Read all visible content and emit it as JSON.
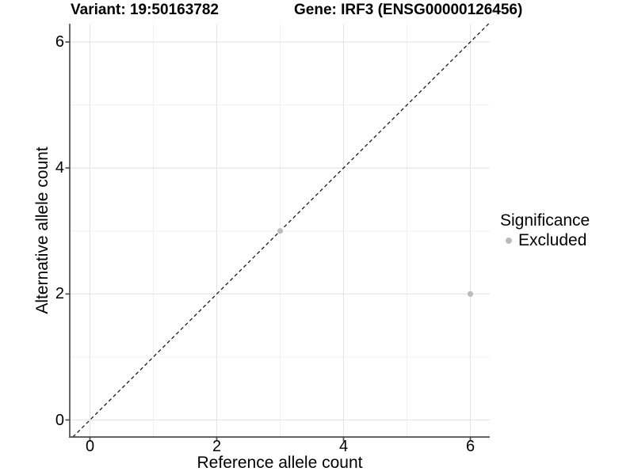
{
  "chart_data": {
    "type": "scatter",
    "title_left": "Variant: 19:50163782",
    "title_right": "Gene: IRF3 (ENSG00000126456)",
    "xlabel": "Reference allele count",
    "ylabel": "Alternative allele count",
    "x_ticks": [
      0,
      2,
      4,
      6
    ],
    "x_tick_labels": [
      "0",
      "2",
      "4",
      "6"
    ],
    "y_ticks": [
      0,
      2,
      4,
      6
    ],
    "y_tick_labels": [
      "0",
      "2",
      "4",
      "6"
    ],
    "x_minor": [
      1,
      3,
      5
    ],
    "y_minor": [
      1,
      3,
      5
    ],
    "xlim": [
      -0.33,
      6.31
    ],
    "ylim": [
      -0.27,
      6.29
    ],
    "grid": true,
    "points": [
      {
        "x": 3,
        "y": 3,
        "significance": "Excluded"
      },
      {
        "x": 6,
        "y": 2,
        "significance": "Excluded"
      }
    ],
    "reference_line": {
      "type": "identity",
      "slope": 1,
      "intercept": 0,
      "style": "dashed",
      "color": "#1a1a1a"
    },
    "legend": {
      "title": "Significance",
      "position": "right",
      "items": [
        {
          "label": "Excluded",
          "color": "#bcbcbc"
        }
      ]
    },
    "colors": {
      "point": "#bcbcbc",
      "grid_major": "#e3e3e3",
      "grid_minor": "#f0f0f0",
      "axis": "#4d4d4d",
      "background": "#ffffff"
    }
  }
}
